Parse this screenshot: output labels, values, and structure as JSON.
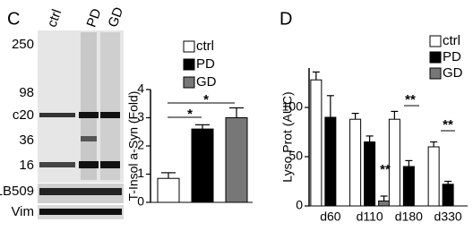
{
  "panel_labels": [
    "C",
    "D"
  ],
  "blot": {
    "lanes": [
      "ctrl",
      "PD",
      "GD"
    ],
    "markers": [
      "250",
      "98",
      "c20",
      "36",
      "16",
      "LB509",
      "Vim"
    ]
  },
  "chart_data": [
    {
      "type": "bar",
      "ylabel": "T-Insol a-Syn (Fold)",
      "categories": [
        null
      ],
      "series": [
        {
          "name": "ctrl",
          "color": "#ffffff",
          "values": [
            0.85
          ],
          "errors": [
            0.2
          ]
        },
        {
          "name": "PD",
          "color": "#000000",
          "values": [
            2.6
          ],
          "errors": [
            0.15
          ]
        },
        {
          "name": "GD",
          "color": "#777777",
          "values": [
            3.0
          ],
          "errors": [
            0.35
          ]
        }
      ],
      "ylim": [
        0,
        4
      ],
      "yticks": [
        0,
        1,
        2,
        3,
        4
      ],
      "legend": "upper right",
      "annotations": [
        "*",
        "*"
      ]
    },
    {
      "type": "bar",
      "ylabel": "Lyso Prot (AUC)",
      "categories": [
        "d60",
        "d110",
        "d180",
        "d330"
      ],
      "series": [
        {
          "name": "ctrl",
          "color": "#ffffff",
          "values": [
            128,
            88,
            88,
            60
          ],
          "errors": [
            8,
            6,
            8,
            5
          ]
        },
        {
          "name": "PD",
          "color": "#000000",
          "values": [
            90,
            65,
            40,
            22
          ],
          "errors": [
            22,
            6,
            6,
            3
          ]
        },
        {
          "name": "GD",
          "color": "#777777",
          "values": [
            null,
            5,
            null,
            null
          ],
          "errors": [
            null,
            5,
            null,
            null
          ]
        }
      ],
      "ylim": [
        0,
        140
      ],
      "yticks": [
        0,
        50,
        100
      ],
      "legend": "upper right",
      "annotations": [
        "**",
        "**",
        "**"
      ]
    }
  ]
}
